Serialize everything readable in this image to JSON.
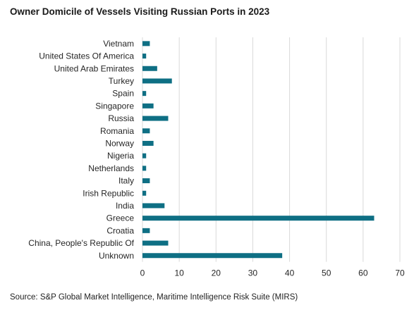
{
  "title": "Owner Domicile of Vessels Visiting Russian Ports in 2023",
  "source": "Source: S&P Global Market Intelligence, Maritime Intelligence Risk Suite (MIRS)",
  "chart_data": {
    "type": "bar",
    "orientation": "horizontal",
    "title": "Owner Domicile of Vessels Visiting Russian Ports in 2023",
    "xlabel": "",
    "ylabel": "",
    "xlim": [
      0,
      70
    ],
    "xticks": [
      0,
      10,
      20,
      30,
      40,
      50,
      60,
      70
    ],
    "grid": "vertical",
    "bar_color": "#0e6f84",
    "categories": [
      "Vietnam",
      "United States Of America",
      "United Arab Emirates",
      "Turkey",
      "Spain",
      "Singapore",
      "Russia",
      "Romania",
      "Norway",
      "Nigeria",
      "Netherlands",
      "Italy",
      "Irish Republic",
      "India",
      "Greece",
      "Croatia",
      "China, People's Republic Of",
      "Unknown"
    ],
    "values": [
      2,
      1,
      4,
      8,
      1,
      3,
      7,
      2,
      3,
      1,
      1,
      2,
      1,
      6,
      63,
      2,
      7,
      38
    ]
  }
}
